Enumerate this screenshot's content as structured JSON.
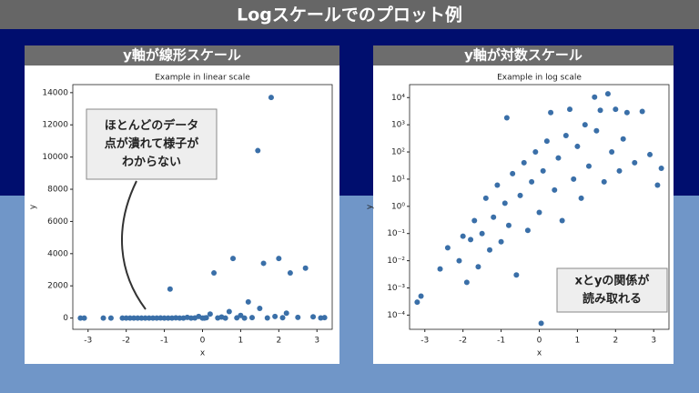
{
  "title": "Logスケールでのプロット例",
  "panels": [
    "y軸が線形スケール",
    "y軸が対数スケール"
  ],
  "chart_data": [
    {
      "type": "scatter",
      "title": "Example in linear scale",
      "xlabel": "x",
      "ylabel": "y",
      "color": "#3a6fa8",
      "log_y": false,
      "annotation": [
        "ほとんどのデータ",
        "点が潰れて様子が",
        "わからない"
      ],
      "xlim": [
        -3.4,
        3.4
      ],
      "xticks": [
        -3,
        -2,
        -1,
        0,
        1,
        2,
        3
      ],
      "ylim": [
        -700,
        14500
      ],
      "yticks": [
        0,
        2000,
        4000,
        6000,
        8000,
        10000,
        12000,
        14000
      ],
      "x": [
        -3.2,
        -3.1,
        -2.6,
        -2.4,
        -2.1,
        -2.0,
        -1.9,
        -1.8,
        -1.7,
        -1.6,
        -1.5,
        -1.4,
        -1.3,
        -1.2,
        -1.1,
        -1.0,
        -0.9,
        -0.85,
        -0.8,
        -0.7,
        -0.6,
        -0.5,
        -0.4,
        -0.3,
        -0.2,
        -0.1,
        0.0,
        0.05,
        0.1,
        0.2,
        0.3,
        0.4,
        0.5,
        0.6,
        0.7,
        0.8,
        0.9,
        1.0,
        1.1,
        1.2,
        1.3,
        1.45,
        1.5,
        1.6,
        1.7,
        1.8,
        1.9,
        2.0,
        2.1,
        2.2,
        2.3,
        2.5,
        2.7,
        2.9,
        3.1,
        3.2
      ],
      "y": [
        0.0003,
        0.0005,
        0.005,
        0.03,
        0.01,
        0.08,
        0.0016,
        0.06,
        0.3,
        0.006,
        0.1,
        2,
        0.025,
        0.4,
        6,
        0.05,
        1.3,
        1800,
        0.2,
        16,
        0.003,
        2.5,
        40,
        0.13,
        8,
        100,
        0.6,
        5e-05,
        20,
        250,
        2800,
        4,
        60,
        0.3,
        400,
        3700,
        10,
        160,
        2,
        1000,
        30,
        10400,
        600,
        3400,
        8,
        13700,
        100,
        3700,
        20,
        300,
        2800,
        40,
        3100,
        80,
        6,
        25
      ]
    },
    {
      "type": "scatter",
      "title": "Example in log scale",
      "xlabel": "x",
      "ylabel": "y",
      "color": "#3a6fa8",
      "log_y": true,
      "annotation": [
        "xとyの関係が",
        "読み取れる"
      ],
      "xlim": [
        -3.4,
        3.4
      ],
      "xticks": [
        -3,
        -2,
        -1,
        0,
        1,
        2,
        3
      ],
      "ylim": [
        3e-05,
        30000
      ],
      "yticks": [
        {
          "value": 0.0001,
          "label": "10⁻⁴"
        },
        {
          "value": 0.001,
          "label": "10⁻³"
        },
        {
          "value": 0.01,
          "label": "10⁻²"
        },
        {
          "value": 0.1,
          "label": "10⁻¹"
        },
        {
          "value": 1,
          "label": "10⁰"
        },
        {
          "value": 10,
          "label": "10¹"
        },
        {
          "value": 100,
          "label": "10²"
        },
        {
          "value": 1000,
          "label": "10³"
        },
        {
          "value": 10000,
          "label": "10⁴"
        }
      ],
      "x": [
        -3.2,
        -3.1,
        -2.6,
        -2.4,
        -2.1,
        -2.0,
        -1.9,
        -1.8,
        -1.7,
        -1.6,
        -1.5,
        -1.4,
        -1.3,
        -1.2,
        -1.1,
        -1.0,
        -0.9,
        -0.85,
        -0.8,
        -0.7,
        -0.6,
        -0.5,
        -0.4,
        -0.3,
        -0.2,
        -0.1,
        0.0,
        0.05,
        0.1,
        0.2,
        0.3,
        0.4,
        0.5,
        0.6,
        0.7,
        0.8,
        0.9,
        1.0,
        1.1,
        1.2,
        1.3,
        1.45,
        1.5,
        1.6,
        1.7,
        1.8,
        1.9,
        2.0,
        2.1,
        2.2,
        2.3,
        2.5,
        2.7,
        2.9,
        3.1,
        3.2
      ],
      "y": [
        0.0003,
        0.0005,
        0.005,
        0.03,
        0.01,
        0.08,
        0.0016,
        0.06,
        0.3,
        0.006,
        0.1,
        2,
        0.025,
        0.4,
        6,
        0.05,
        1.3,
        1800,
        0.2,
        16,
        0.003,
        2.5,
        40,
        0.13,
        8,
        100,
        0.6,
        5e-05,
        20,
        250,
        2800,
        4,
        60,
        0.3,
        400,
        3700,
        10,
        160,
        2,
        1000,
        30,
        10400,
        600,
        3400,
        8,
        13700,
        100,
        3700,
        20,
        300,
        2800,
        40,
        3100,
        80,
        6,
        25
      ]
    }
  ]
}
